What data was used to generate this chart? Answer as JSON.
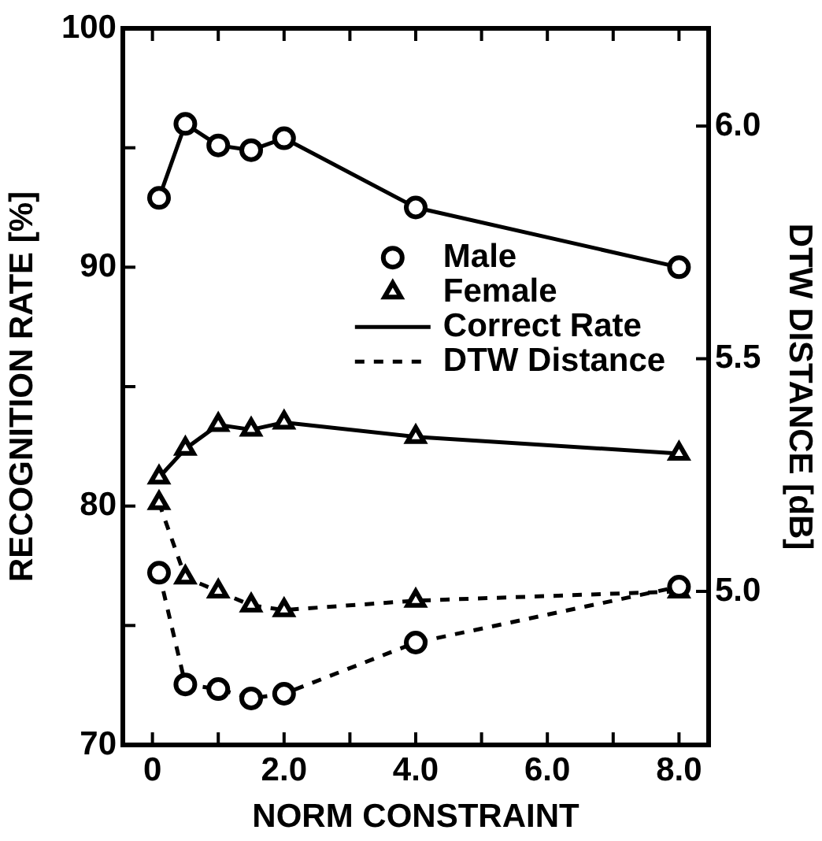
{
  "chart_data": {
    "type": "line",
    "xlabel": "NORM CONSTRAINT",
    "ylabel": "RECOGNITION RATE [%]",
    "y2label": "DTW DISTANCE [dB]",
    "xlim": [
      -0.45,
      8.45
    ],
    "xticks": [
      {
        "value": 0,
        "label": "0"
      },
      {
        "value": 1,
        "label": null
      },
      {
        "value": 2,
        "label": "2.0"
      },
      {
        "value": 3,
        "label": null
      },
      {
        "value": 4,
        "label": "4.0"
      },
      {
        "value": 5,
        "label": null
      },
      {
        "value": 6,
        "label": "6.0"
      },
      {
        "value": 7,
        "label": null
      },
      {
        "value": 8,
        "label": "8.0"
      }
    ],
    "ylim": [
      70,
      100
    ],
    "yticks": [
      70,
      {
        "value": 75,
        "label": null
      },
      80,
      {
        "value": 85,
        "label": null
      },
      90,
      {
        "value": 95,
        "label": null
      },
      100
    ],
    "y2lim": [
      4.67,
      6.21
    ],
    "y2ticks": [
      {
        "value": 5,
        "label": "5.0"
      },
      {
        "value": 5.5,
        "label": "5.5"
      },
      {
        "value": 6,
        "label": "6.0"
      }
    ],
    "x": [
      0.1,
      0.5,
      1,
      1.5,
      2,
      4,
      8
    ],
    "series": [
      {
        "name": "Male",
        "color": "#000000",
        "marker": "circle",
        "line_style": "solid",
        "values": [
          92.9,
          96.0,
          95.1,
          94.9,
          95.4,
          92.5,
          90.0
        ]
      },
      {
        "name": "Female",
        "color": "#000000",
        "marker": "triangle",
        "line_style": "solid",
        "values": [
          81.2,
          82.4,
          83.4,
          83.2,
          83.5,
          82.9,
          82.2
        ]
      },
      {
        "color": "#000000",
        "marker": "circle",
        "line_style": "dashed",
        "axis": "y2",
        "values": [
          5.04,
          4.8,
          4.79,
          4.77,
          4.78,
          4.89,
          5.01
        ]
      },
      {
        "color": "#000000",
        "marker": "triangle",
        "line_style": "dashed",
        "axis": "y2",
        "values": [
          5.19,
          5.03,
          5.0,
          4.97,
          4.96,
          4.98,
          5.0
        ]
      }
    ],
    "annotations": [
      "Correct Rate",
      "DTW Distance"
    ],
    "legend": "center",
    "grid": false
  }
}
